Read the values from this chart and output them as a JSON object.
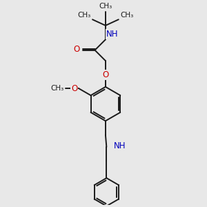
{
  "bg_color": "#e8e8e8",
  "bond_color": "#1a1a1a",
  "oxygen_color": "#cc0000",
  "nitrogen_color": "#0000bb",
  "bond_width": 1.4,
  "font_size_atom": 8.5,
  "fig_size": [
    3.0,
    3.0
  ],
  "dpi": 100,
  "xlim": [
    0,
    10
  ],
  "ylim": [
    0,
    10
  ]
}
